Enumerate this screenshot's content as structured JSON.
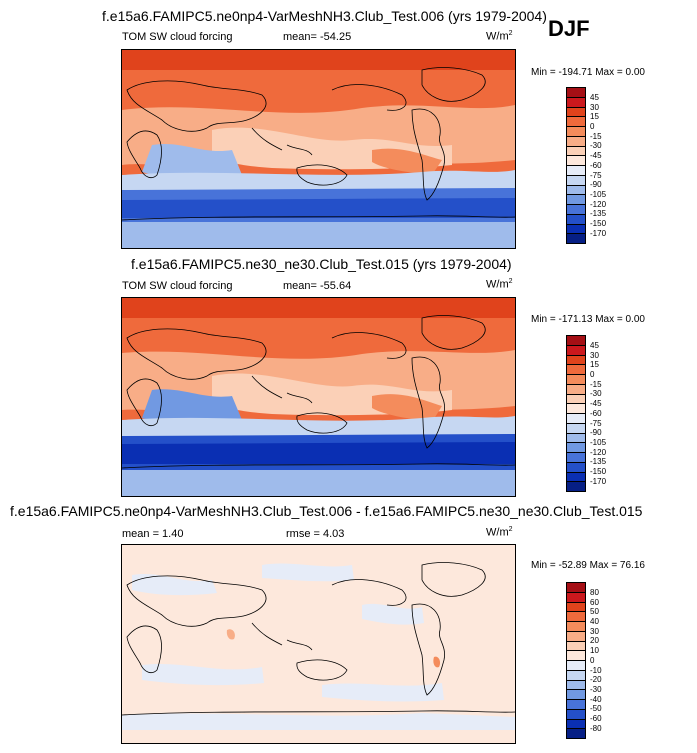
{
  "season": "DJF",
  "panels": [
    {
      "title": "f.e15a6.FAMIPC5.ne0np4-VarMeshNH3.Club_Test.006 (yrs 1979-2004)",
      "left_label": "TOM SW cloud forcing",
      "center_label": "mean= -54.25",
      "units": "W/m",
      "units_sup": "2",
      "minmax": "Min = -194.71 Max =   0.00",
      "levels": [
        "45",
        "30",
        "15",
        "0",
        "-15",
        "-30",
        "-45",
        "-60",
        "-75",
        "-90",
        "-105",
        "-120",
        "-135",
        "-150",
        "-170"
      ],
      "colors": [
        "#a50f15",
        "#cb181d",
        "#e0431c",
        "#ef6a3c",
        "#f48c5c",
        "#f8ad87",
        "#fbd0b7",
        "#fde8dc",
        "#e6ecf8",
        "#c6d7f2",
        "#9fbbeb",
        "#7199e2",
        "#4873d9",
        "#2450c9",
        "#0a2fb3",
        "#061f85"
      ]
    },
    {
      "title": "f.e15a6.FAMIPC5.ne30_ne30.Club_Test.015 (yrs 1979-2004)",
      "left_label": "TOM SW cloud forcing",
      "center_label": "mean= -55.64",
      "units": "W/m",
      "units_sup": "2",
      "minmax": "Min = -171.13 Max =   0.00",
      "levels": [
        "45",
        "30",
        "15",
        "0",
        "-15",
        "-30",
        "-45",
        "-60",
        "-75",
        "-90",
        "-105",
        "-120",
        "-135",
        "-150",
        "-170"
      ],
      "colors": [
        "#a50f15",
        "#cb181d",
        "#e0431c",
        "#ef6a3c",
        "#f48c5c",
        "#f8ad87",
        "#fbd0b7",
        "#fde8dc",
        "#e6ecf8",
        "#c6d7f2",
        "#9fbbeb",
        "#7199e2",
        "#4873d9",
        "#2450c9",
        "#0a2fb3",
        "#061f85"
      ]
    },
    {
      "title": "f.e15a6.FAMIPC5.ne0np4-VarMeshNH3.Club_Test.006 - f.e15a6.FAMIPC5.ne30_ne30.Club_Test.015",
      "left_label": "mean =   1.40",
      "center_label": "rmse =   4.03",
      "units": "W/m",
      "units_sup": "2",
      "minmax": "Min = -52.89 Max =  76.16",
      "levels": [
        "80",
        "60",
        "50",
        "40",
        "30",
        "20",
        "10",
        "0",
        "-10",
        "-20",
        "-30",
        "-40",
        "-50",
        "-60",
        "-80"
      ],
      "colors": [
        "#a50f15",
        "#cb181d",
        "#e0431c",
        "#ef6a3c",
        "#f48c5c",
        "#f8ad87",
        "#fbd0b7",
        "#fde8dc",
        "#e6ecf8",
        "#c6d7f2",
        "#9fbbeb",
        "#7199e2",
        "#4873d9",
        "#2450c9",
        "#0a2fb3",
        "#061f85"
      ]
    }
  ]
}
